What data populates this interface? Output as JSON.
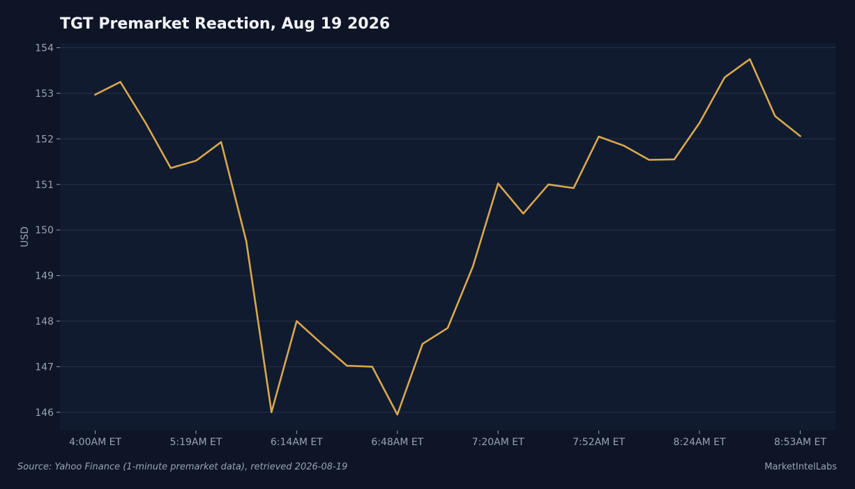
{
  "chart_data": {
    "type": "line",
    "title": "TGT Premarket Reaction, Aug 19 2026",
    "xlabel": "",
    "ylabel": "USD",
    "ylim": [
      145.6,
      154.1
    ],
    "yticks": [
      146,
      147,
      148,
      149,
      150,
      151,
      152,
      153,
      154
    ],
    "xlim": [
      -1.4,
      29.4
    ],
    "x_tick_labels": [
      {
        "index": 0,
        "label": "4:00AM ET"
      },
      {
        "index": 4,
        "label": "5:19AM ET"
      },
      {
        "index": 8,
        "label": "6:14AM ET"
      },
      {
        "index": 12,
        "label": "6:48AM ET"
      },
      {
        "index": 16,
        "label": "7:20AM ET"
      },
      {
        "index": 20,
        "label": "7:52AM ET"
      },
      {
        "index": 24,
        "label": "8:24AM ET"
      },
      {
        "index": 28,
        "label": "8:53AM ET"
      }
    ],
    "grid": true,
    "series": [
      {
        "color": "#d9a84e",
        "values": [
          152.97,
          153.25,
          152.35,
          151.36,
          151.52,
          151.93,
          149.75,
          146.0,
          148.0,
          147.5,
          147.02,
          147.0,
          145.95,
          147.5,
          147.85,
          149.2,
          151.02,
          150.36,
          151.0,
          150.92,
          152.05,
          151.85,
          151.54,
          151.55,
          152.35,
          153.35,
          153.75,
          152.5,
          152.06
        ]
      }
    ]
  },
  "footer": {
    "source": "Source: Yahoo Finance (1-minute premarket data), retrieved 2026-08-19",
    "brand": "MarketIntelLabs"
  },
  "colors": {
    "background": "#0e1527",
    "plot_background": "#111b2f",
    "grid": "#26324a",
    "line": "#d9a84e",
    "text_muted": "#9aa3b2",
    "title": "#f2f4f8"
  }
}
